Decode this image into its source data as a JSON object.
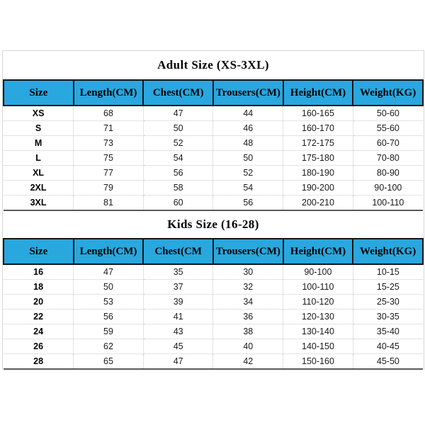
{
  "page": {
    "background": "#ffffff"
  },
  "colors": {
    "header_bg": "#29a7df",
    "header_text": "#000000",
    "title_text": "#000000",
    "cell_text": "#1a1a1a",
    "header_border": "#151515",
    "grid_dotted": "#c8c8c8",
    "outer_border": "#d8d8d8",
    "section_bottom_border": "#5a5a5a"
  },
  "chart_data": [
    {
      "type": "table",
      "title": "Adult Size (XS-3XL)",
      "columns": [
        "Size",
        "Length(CM)",
        "Chest(CM)",
        "Trousers(CM)",
        "Height(CM)",
        "Weight(KG)"
      ],
      "rows": [
        [
          "XS",
          "68",
          "47",
          "44",
          "160-165",
          "50-60"
        ],
        [
          "S",
          "71",
          "50",
          "46",
          "160-170",
          "55-60"
        ],
        [
          "M",
          "73",
          "52",
          "48",
          "172-175",
          "60-70"
        ],
        [
          "L",
          "75",
          "54",
          "50",
          "175-180",
          "70-80"
        ],
        [
          "XL",
          "77",
          "56",
          "52",
          "180-190",
          "80-90"
        ],
        [
          "2XL",
          "79",
          "58",
          "54",
          "190-200",
          "90-100"
        ],
        [
          "3XL",
          "81",
          "60",
          "56",
          "200-210",
          "100-110"
        ]
      ]
    },
    {
      "type": "table",
      "title": "Kids Size (16-28)",
      "columns": [
        "Size",
        "Length(CM)",
        "Chest(CM",
        "Trousers(CM)",
        "Height(CM)",
        "Weight(KG)"
      ],
      "rows": [
        [
          "16",
          "47",
          "35",
          "30",
          "90-100",
          "10-15"
        ],
        [
          "18",
          "50",
          "37",
          "32",
          "100-110",
          "15-25"
        ],
        [
          "20",
          "53",
          "39",
          "34",
          "110-120",
          "25-30"
        ],
        [
          "22",
          "56",
          "41",
          "36",
          "120-130",
          "30-35"
        ],
        [
          "24",
          "59",
          "43",
          "38",
          "130-140",
          "35-40"
        ],
        [
          "26",
          "62",
          "45",
          "40",
          "140-150",
          "40-45"
        ],
        [
          "28",
          "65",
          "47",
          "42",
          "150-160",
          "45-50"
        ]
      ]
    }
  ]
}
